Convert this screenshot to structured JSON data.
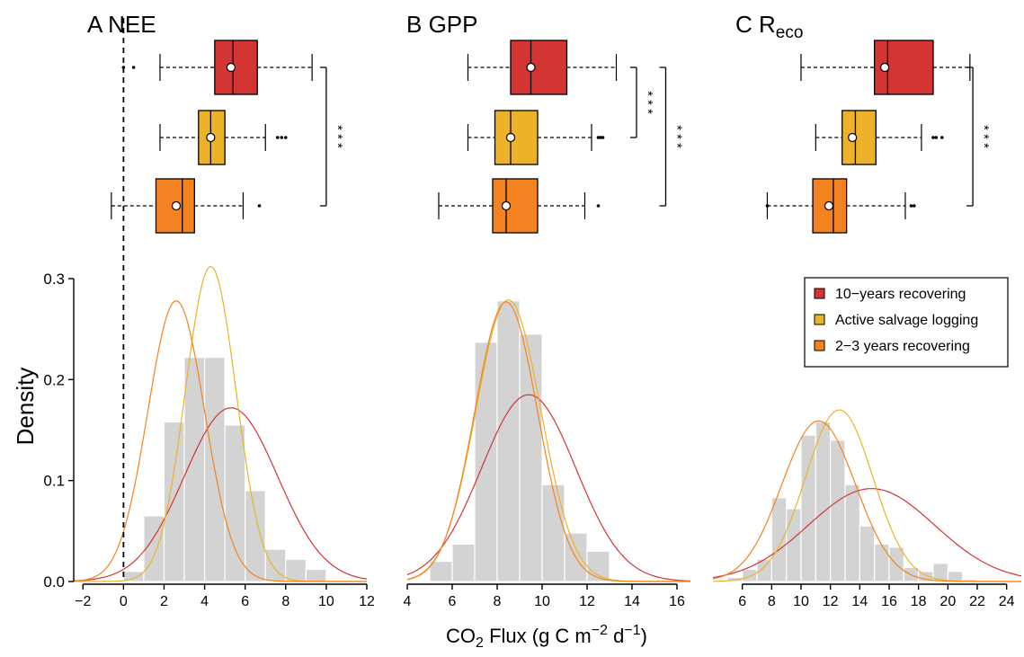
{
  "colors": {
    "recovering10": "#d33434",
    "salvage": "#ecb32a",
    "recovering23": "#f58220",
    "hist": "#d3d3d3"
  },
  "chart_data": {
    "type": "histogram+density+boxplot",
    "ylabel": "Density",
    "xlabel_parts": {
      "co": "CO",
      "sub2": "2",
      "flux": " Flux (g C m",
      "exp1": "−2",
      "d": " d",
      "exp2": "−1",
      "close": ")"
    },
    "yticks": [
      {
        "value": 0.0,
        "label": "0.0"
      },
      {
        "value": 0.1,
        "label": "0.1"
      },
      {
        "value": 0.2,
        "label": "0.2"
      },
      {
        "value": 0.3,
        "label": "0.3"
      }
    ],
    "ylim": [
      0,
      0.32
    ],
    "legend": {
      "placement": "top-right",
      "items": [
        {
          "label": "10−years recovering",
          "color": "#d33434"
        },
        {
          "label": "Active salvage logging",
          "color": "#ecb32a"
        },
        {
          "label": "2−3 years recovering",
          "color": "#f58220"
        }
      ]
    },
    "significance": "* * *",
    "panels": [
      {
        "id": "nee",
        "title_main": "A NEE",
        "title_sub": "",
        "xlim": [
          -2.5,
          12
        ],
        "xticks": [
          -2,
          0,
          2,
          4,
          6,
          8,
          10,
          12
        ],
        "xtick_labels": [
          "−2",
          "0",
          "2",
          "4",
          "6",
          "8",
          "10",
          "12"
        ],
        "zero_line": true,
        "hist": {
          "start": -1,
          "width": 1,
          "values": [
            0.0,
            0.01,
            0.065,
            0.158,
            0.222,
            0.222,
            0.155,
            0.09,
            0.032,
            0.022,
            0.012
          ]
        },
        "curves": [
          {
            "color": "#d33434",
            "mean": 5.3,
            "sd": 2.3,
            "peak": 0.172
          },
          {
            "color": "#ecb32a",
            "mean": 4.3,
            "sd": 1.25,
            "peak": 0.312
          },
          {
            "color": "#f58220",
            "mean": 2.6,
            "sd": 1.4,
            "peak": 0.278
          }
        ],
        "boxes": [
          {
            "color": "#d33434",
            "wlo": 1.8,
            "q1": 4.5,
            "med": 5.4,
            "q3": 6.6,
            "whi": 9.3,
            "mean": 5.3,
            "outliers": [
              0.0,
              0.5
            ]
          },
          {
            "color": "#ecb32a",
            "wlo": 1.8,
            "q1": 3.7,
            "med": 4.3,
            "q3": 5.0,
            "whi": 7.0,
            "mean": 4.3,
            "outliers": [
              7.6,
              7.8,
              8.0
            ]
          },
          {
            "color": "#f58220",
            "wlo": -0.6,
            "q1": 1.6,
            "med": 2.9,
            "q3": 3.5,
            "whi": 5.9,
            "mean": 2.6,
            "outliers": [
              6.7
            ]
          }
        ],
        "brackets": [
          {
            "from": 0,
            "to": 2,
            "x": 10.0,
            "label": "* * *"
          }
        ]
      },
      {
        "id": "gpp",
        "title_main": "B GPP",
        "title_sub": "",
        "xlim": [
          4,
          16.6
        ],
        "xticks": [
          4,
          6,
          8,
          10,
          12,
          14,
          16
        ],
        "xtick_labels": [
          "4",
          "6",
          "8",
          "10",
          "12",
          "14",
          "16"
        ],
        "zero_line": false,
        "hist": {
          "start": 4,
          "width": 1,
          "values": [
            0.0,
            0.02,
            0.037,
            0.237,
            0.278,
            0.245,
            0.096,
            0.048,
            0.03,
            0.0,
            0.0,
            0.0
          ]
        },
        "curves": [
          {
            "color": "#d33434",
            "mean": 9.4,
            "sd": 2.1,
            "peak": 0.185
          },
          {
            "color": "#ecb32a",
            "mean": 8.5,
            "sd": 1.45,
            "peak": 0.279
          },
          {
            "color": "#f58220",
            "mean": 8.4,
            "sd": 1.4,
            "peak": 0.277
          }
        ],
        "boxes": [
          {
            "color": "#d33434",
            "wlo": 6.7,
            "q1": 8.6,
            "med": 9.5,
            "q3": 11.1,
            "whi": 13.3,
            "mean": 9.5,
            "outliers": []
          },
          {
            "color": "#ecb32a",
            "wlo": 6.7,
            "q1": 7.9,
            "med": 8.6,
            "q3": 9.8,
            "whi": 12.2,
            "mean": 8.6,
            "outliers": [
              12.5,
              12.6,
              12.7
            ]
          },
          {
            "color": "#f58220",
            "wlo": 5.4,
            "q1": 7.8,
            "med": 8.4,
            "q3": 9.8,
            "whi": 11.9,
            "mean": 8.4,
            "outliers": [
              12.5
            ]
          }
        ],
        "brackets": [
          {
            "from": 0,
            "to": 1,
            "x": 14.2,
            "label": "* * *"
          },
          {
            "from": 0,
            "to": 2,
            "x": 15.5,
            "label": "* * *"
          }
        ]
      },
      {
        "id": "reco",
        "title_main": "C R",
        "title_sub": "eco",
        "xlim": [
          4,
          25
        ],
        "xticks": [
          6,
          8,
          10,
          12,
          14,
          16,
          18,
          20,
          22,
          24
        ],
        "xtick_labels": [
          "6",
          "8",
          "10",
          "12",
          "14",
          "16",
          "18",
          "20",
          "22",
          "24"
        ],
        "zero_line": false,
        "hist": {
          "start": 5,
          "width": 1,
          "values": [
            0.004,
            0.012,
            0.022,
            0.083,
            0.072,
            0.145,
            0.158,
            0.14,
            0.096,
            0.055,
            0.037,
            0.034,
            0.014,
            0.01,
            0.018,
            0.01,
            0.002,
            0.0,
            0.0
          ]
        },
        "curves": [
          {
            "color": "#d33434",
            "mean": 14.8,
            "sd": 4.3,
            "peak": 0.092
          },
          {
            "color": "#ecb32a",
            "mean": 12.6,
            "sd": 2.3,
            "peak": 0.17
          },
          {
            "color": "#f58220",
            "mean": 11.2,
            "sd": 2.5,
            "peak": 0.159
          }
        ],
        "boxes": [
          {
            "color": "#d33434",
            "wlo": 10.0,
            "q1": 15.0,
            "med": 15.9,
            "q3": 19.0,
            "whi": 21.5,
            "mean": 15.7,
            "outliers": []
          },
          {
            "color": "#ecb32a",
            "wlo": 11.0,
            "q1": 12.8,
            "med": 13.7,
            "q3": 15.1,
            "whi": 18.2,
            "mean": 13.5,
            "outliers": [
              19.0,
              19.2,
              19.6
            ]
          },
          {
            "color": "#f58220",
            "wlo": 7.7,
            "q1": 10.8,
            "med": 12.2,
            "q3": 13.1,
            "whi": 17.1,
            "mean": 11.9,
            "outliers": [
              7.7,
              17.5,
              17.7
            ]
          }
        ],
        "brackets": [
          {
            "from": 0,
            "to": 2,
            "x": 21.7,
            "label": "* * *"
          }
        ]
      }
    ]
  }
}
